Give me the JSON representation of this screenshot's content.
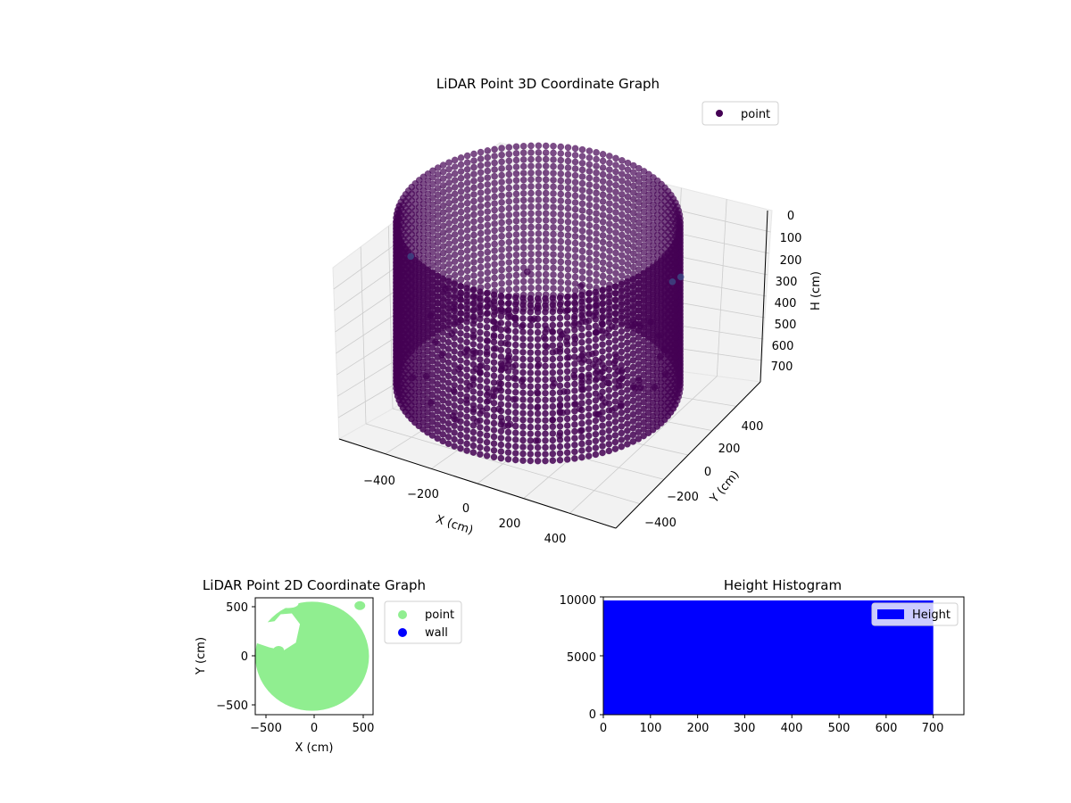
{
  "colors": {
    "point3d": "#440154",
    "outlier3d": "#3b528b",
    "pane": "#f2f2f2",
    "grid": "#cccccc",
    "point2d": "#90ee90",
    "wall": "#0000ff",
    "hist": "#0000ff"
  },
  "chart_data": [
    {
      "type": "scatter",
      "projection": "3d",
      "title": "LiDAR Point 3D Coordinate Graph",
      "xlabel": "X (cm)",
      "ylabel": "Y (cm)",
      "zlabel": "H (cm)",
      "xticks": [
        "−400",
        "−200",
        "0",
        "200",
        "400"
      ],
      "yticks": [
        "400",
        "200",
        "0",
        "−200",
        "−400"
      ],
      "zticks": [
        "0",
        "100",
        "200",
        "300",
        "400",
        "500",
        "600",
        "700"
      ],
      "legend": {
        "labels": [
          "point"
        ],
        "placement": "top-right"
      },
      "series": [
        {
          "name": "point",
          "shape": "cylindrical wall",
          "radius_cm": 540,
          "h_range": [
            0,
            700
          ],
          "inner_structures": "scattered clusters near the top inside the wall",
          "outliers": [
            {
              "x": -560,
              "y": 0,
              "h": 380
            },
            {
              "x": 520,
              "y": 120,
              "h": 540
            },
            {
              "x": 580,
              "y": 80,
              "h": 600
            }
          ]
        }
      ],
      "xlim": [
        -550,
        550
      ],
      "ylim": [
        -550,
        550
      ],
      "zlim": [
        0,
        750
      ],
      "grid": true
    },
    {
      "type": "scatter",
      "title": "LiDAR Point 2D Coordinate Graph",
      "xlabel": "X (cm)",
      "ylabel": "Y (cm)",
      "xticks": [
        "−500",
        "0",
        "500"
      ],
      "yticks": [
        "500",
        "0",
        "−500"
      ],
      "legend": {
        "labels": [
          "point",
          "wall"
        ],
        "placement": "outside-right"
      },
      "series": [
        {
          "name": "point",
          "shape": "filled disc",
          "radius_cm": 560,
          "notch": "upper-left"
        },
        {
          "name": "wall",
          "values": []
        }
      ],
      "xlim": [
        -560,
        600
      ],
      "ylim": [
        -600,
        600
      ]
    },
    {
      "type": "bar",
      "title": "Height Histogram",
      "xticks": [
        "0",
        "100",
        "200",
        "300",
        "400",
        "500",
        "600",
        "700"
      ],
      "yticks": [
        "0",
        "5000",
        "10000"
      ],
      "legend": {
        "labels": [
          "Height"
        ],
        "placement": "top-right"
      },
      "series": [
        {
          "name": "Height",
          "bin_range": [
            0,
            700
          ],
          "bin_width": 10,
          "count_per_bin": 9700
        }
      ],
      "xlim": [
        0,
        765
      ],
      "ylim": [
        0,
        10000
      ]
    }
  ]
}
